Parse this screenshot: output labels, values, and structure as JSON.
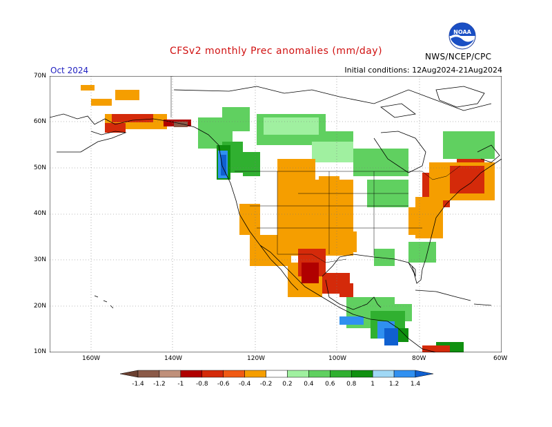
{
  "title": "CFSv2 monthly Prec anomalies (mm/day)",
  "month_label": "Oct 2024",
  "initial_conditions": "Initial conditions: 12Aug2024-21Aug2024",
  "agency": "NWS/NCEP/CPC",
  "logo": {
    "text": "NOAA",
    "icon": "noaa-logo-icon"
  },
  "latitude_labels": [
    "70N",
    "60N",
    "50N",
    "40N",
    "30N",
    "20N",
    "10N"
  ],
  "longitude_labels": [
    "160W",
    "140W",
    "120W",
    "100W",
    "80W",
    "60W"
  ],
  "legend": {
    "ticks": [
      "-1.4",
      "-1.2",
      "-1",
      "-0.8",
      "-0.6",
      "-0.4",
      "-0.2",
      "0.2",
      "0.4",
      "0.6",
      "0.8",
      "1",
      "1.2",
      "1.4"
    ],
    "colors": [
      "#6b4030",
      "#8b5a48",
      "#c0907a",
      "#b00000",
      "#d42a0a",
      "#f05a14",
      "#f59e00",
      "#ffffff",
      "#a0f0a0",
      "#60d060",
      "#30b030",
      "#109010",
      "#a0d8f5",
      "#3090f0",
      "#1060d0"
    ]
  },
  "colors": {
    "title": "#d01010",
    "month": "#2020c0",
    "coast": "#000000",
    "grid": "#777777"
  }
}
